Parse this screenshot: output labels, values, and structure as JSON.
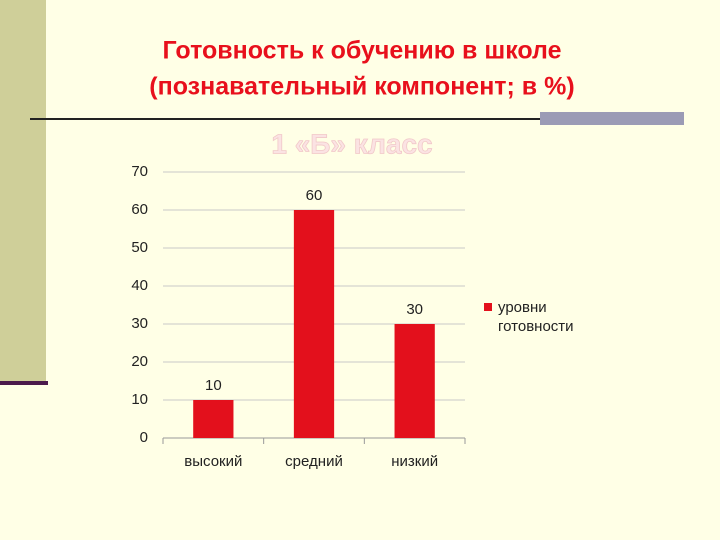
{
  "chart_data": {
    "type": "bar",
    "title": "Готовность к обучению в школе",
    "subtitle": "(познавательный компонент; в %)",
    "chart_title": "1 «Б» класс",
    "categories": [
      "высокий",
      "средний",
      "низкий"
    ],
    "series": [
      {
        "name": "уровни готовности",
        "color": "#e3101c",
        "values": [
          10,
          60,
          30
        ]
      }
    ],
    "ylim": [
      0,
      70
    ],
    "yticks": [
      0,
      10,
      20,
      30,
      40,
      50,
      60,
      70
    ],
    "grid": true,
    "legend": "right",
    "data_labels": true
  }
}
